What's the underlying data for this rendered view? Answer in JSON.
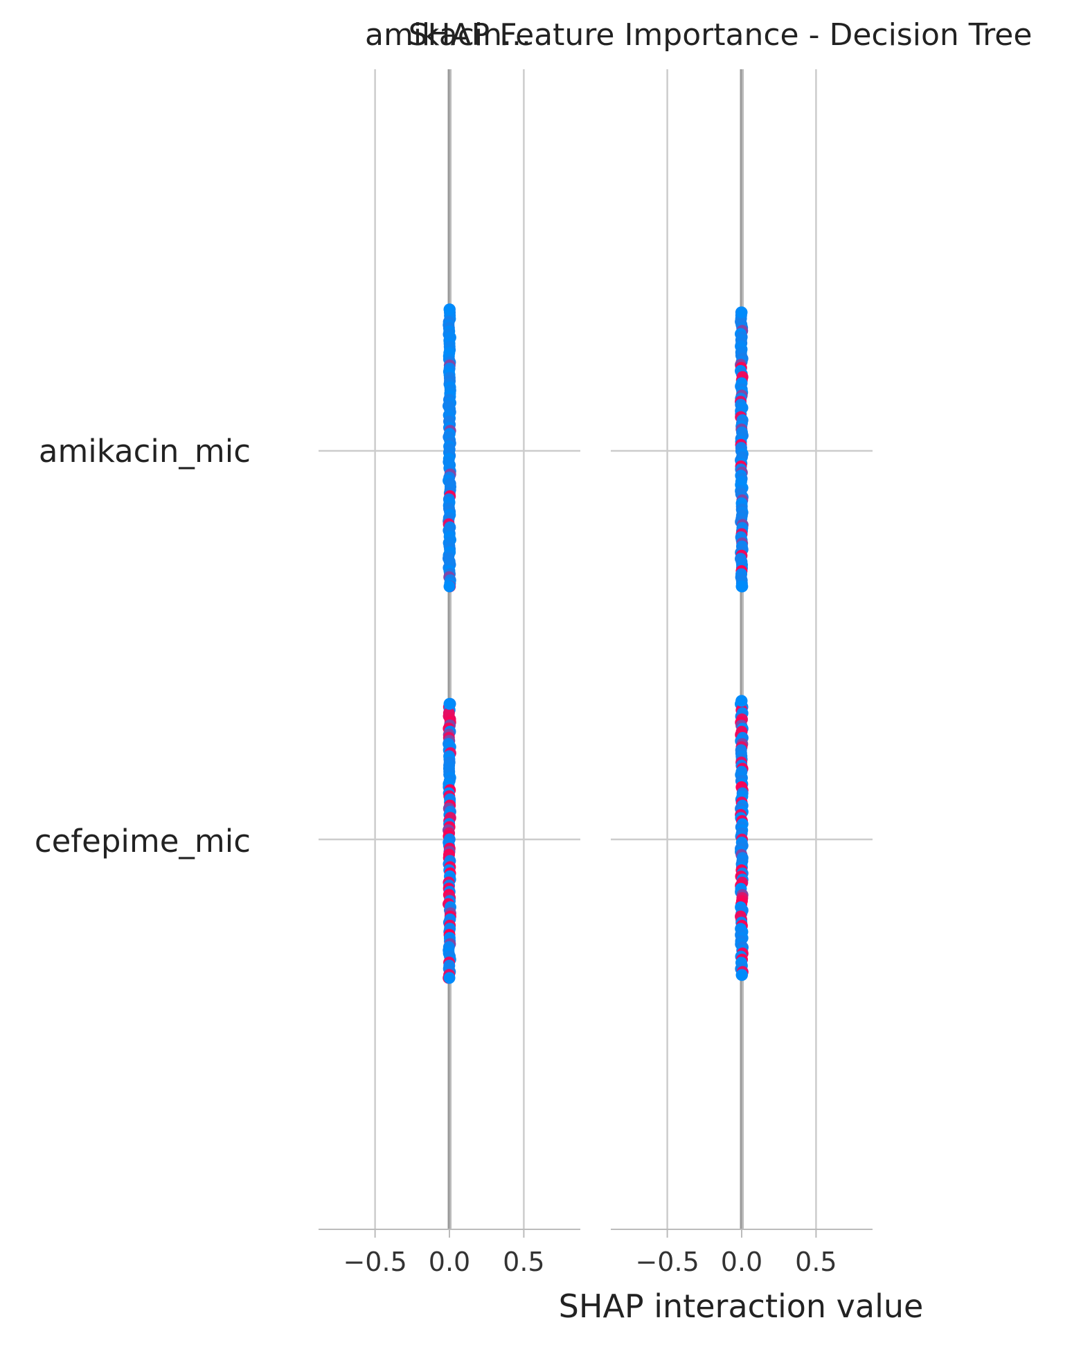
{
  "chart_data": {
    "type": "scatter",
    "title": "SHAP Feature Importance - Decision Tree",
    "xlabel": "SHAP interaction value",
    "xticks": [
      "−0.5",
      "0.0",
      "0.5"
    ],
    "xlim": [
      -0.88,
      0.88
    ],
    "features": [
      "amikacin_mic",
      "cefepime_mic"
    ],
    "panels": [
      {
        "subtitle": "amikacin...",
        "rows": [
          {
            "feature": "amikacin_mic",
            "x": 0.0,
            "spread": [
              -0.48,
              0.46
            ],
            "high_value_fraction": 0.08
          },
          {
            "feature": "cefepime_mic",
            "x": 0.0,
            "spread": [
              -0.46,
              0.47
            ],
            "high_value_fraction": 0.4
          }
        ]
      },
      {
        "subtitle": "",
        "rows": [
          {
            "feature": "amikacin_mic",
            "x": 0.0,
            "spread": [
              -0.47,
              0.46
            ],
            "high_value_fraction": 0.12
          },
          {
            "feature": "cefepime_mic",
            "x": 0.0,
            "spread": [
              -0.47,
              0.46
            ],
            "high_value_fraction": 0.25
          }
        ]
      }
    ],
    "colors": {
      "low": "#008bfb",
      "high": "#ff0052",
      "mid": "#9b30c8"
    },
    "grid": true
  }
}
